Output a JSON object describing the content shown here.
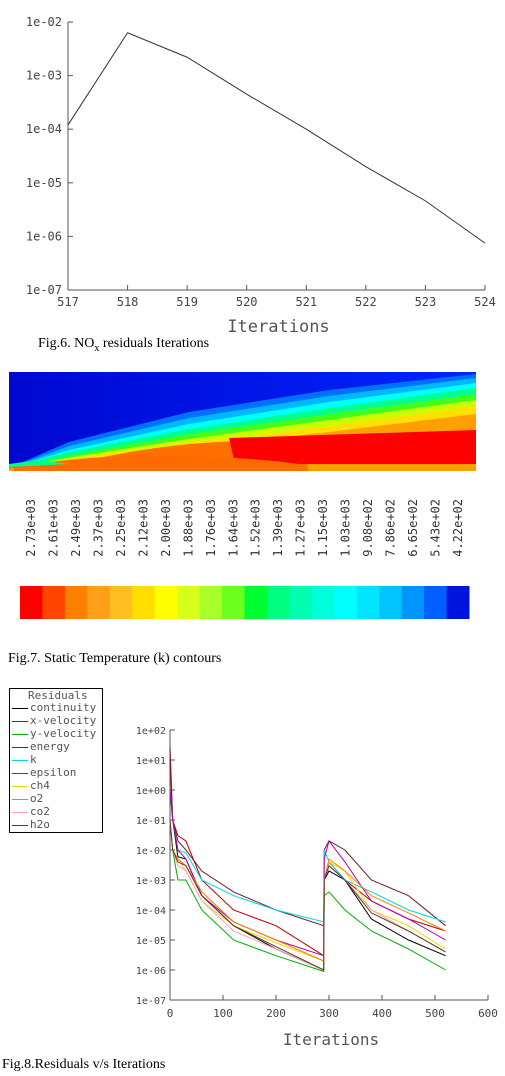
{
  "fig6": {
    "caption_prefix": "Fig.6. NO",
    "caption_sub": "x",
    "caption_suffix": " residuals Iterations",
    "chart_data": {
      "type": "line",
      "xlabel": "Iterations",
      "ylabel": "",
      "xlim": [
        517,
        524
      ],
      "ylim": [
        1e-07,
        0.01
      ],
      "yscale": "log",
      "x_ticks": [
        "517",
        "518",
        "519",
        "520",
        "521",
        "522",
        "523",
        "524"
      ],
      "y_ticks": [
        "1e-02",
        "1e-03",
        "1e-04",
        "1e-05",
        "1e-06",
        "1e-07"
      ],
      "x": [
        517,
        518,
        519,
        520,
        521,
        522,
        523,
        524
      ],
      "values": [
        0.00012,
        0.0063,
        0.0022,
        0.00045,
        0.0001,
        2e-05,
        4.6e-06,
        7.5e-07
      ],
      "grid": false
    }
  },
  "fig7": {
    "caption": "Fig.7. Static Temperature (k) contours",
    "legend_labels": [
      "2.73e+03",
      "2.61e+03",
      "2.49e+03",
      "2.37e+03",
      "2.25e+03",
      "2.12e+03",
      "2.00e+03",
      "1.88e+03",
      "1.76e+03",
      "1.64e+03",
      "1.52e+03",
      "1.39e+03",
      "1.27e+03",
      "1.15e+03",
      "1.03e+03",
      "9.08e+02",
      "7.86e+02",
      "6.65e+02",
      "5.43e+02",
      "4.22e+02"
    ],
    "legend_colors": [
      "#ff0000",
      "#ff4500",
      "#ff7f00",
      "#ff9f1a",
      "#ffbf20",
      "#ffdf00",
      "#ffff00",
      "#d8ff1a",
      "#a8ff2a",
      "#6cff20",
      "#00ff30",
      "#00ff80",
      "#00ffb0",
      "#00ffd8",
      "#00ffff",
      "#00e4ff",
      "#00c4ff",
      "#0094ff",
      "#0060ff",
      "#0014e0"
    ]
  },
  "fig8": {
    "caption": "Fig.8.Residuals v/s Iterations",
    "legend_title": "Residuals",
    "series_names": [
      "continuity",
      "x-velocity",
      "y-velocity",
      "energy",
      "k",
      "epsilon",
      "ch4",
      "o2",
      "co2",
      "h2o"
    ],
    "series_colors": [
      "#000000",
      "#c00000",
      "#00b000",
      "#6b1d2e",
      "#00d8d8",
      "#b000b0",
      "#e0e000",
      "#ff8000",
      "#ff9cc0",
      "#5a3a2a"
    ],
    "chart_data": {
      "type": "line",
      "xlabel": "Iterations",
      "ylabel": "",
      "xlim": [
        0,
        600
      ],
      "ylim": [
        1e-07,
        100.0
      ],
      "yscale": "log",
      "x_ticks": [
        "0",
        "100",
        "200",
        "300",
        "400",
        "500",
        "600"
      ],
      "y_ticks": [
        "1e+02",
        "1e+01",
        "1e+00",
        "1e-01",
        "1e-02",
        "1e-03",
        "1e-04",
        "1e-05",
        "1e-06",
        "1e-07"
      ],
      "x": [
        0,
        5,
        15,
        30,
        60,
        120,
        200,
        290,
        291,
        300,
        330,
        380,
        450,
        520
      ],
      "series": [
        {
          "name": "continuity",
          "values": [
            1.0,
            0.1,
            0.006,
            0.005,
            0.0003,
            3e-05,
            5e-06,
            1e-06,
            0.001,
            0.002,
            0.001,
            5e-05,
            1e-05,
            3e-06
          ]
        },
        {
          "name": "x-velocity",
          "values": [
            10.0,
            0.1,
            0.03,
            0.02,
            0.001,
            0.0001,
            3e-05,
            3e-06,
            0.001,
            0.004,
            0.001,
            0.0002,
            5e-05,
            2e-05
          ]
        },
        {
          "name": "y-velocity",
          "values": [
            0.1,
            0.01,
            0.001,
            0.001,
            0.0001,
            1e-05,
            3e-06,
            9e-07,
            0.0003,
            0.0004,
            0.0001,
            2e-05,
            5e-06,
            1e-06
          ]
        },
        {
          "name": "energy",
          "values": [
            30.0,
            0.1,
            0.02,
            0.01,
            0.002,
            0.0004,
            0.0001,
            3e-05,
            0.01,
            0.02,
            0.01,
            0.001,
            0.0003,
            3e-05
          ]
        },
        {
          "name": "k",
          "values": [
            1.0,
            0.1,
            0.01,
            0.008,
            0.001,
            0.0003,
            0.0001,
            4e-05,
            0.01,
            0.004,
            0.001,
            0.0004,
            0.0001,
            4e-05
          ]
        },
        {
          "name": "epsilon",
          "values": [
            1.0,
            0.1,
            0.01,
            0.005,
            0.0003,
            4e-05,
            1e-05,
            3e-06,
            0.005,
            0.02,
            0.004,
            0.0002,
            5e-05,
            1e-05
          ]
        },
        {
          "name": "ch4",
          "values": [
            0.1,
            0.01,
            0.005,
            0.002,
            0.0002,
            3e-05,
            8e-06,
            2e-06,
            0.001,
            0.004,
            0.002,
            0.0001,
            3e-05,
            5e-06
          ]
        },
        {
          "name": "o2",
          "values": [
            0.1,
            0.01,
            0.005,
            0.003,
            0.0004,
            4e-05,
            1e-05,
            2e-06,
            0.001,
            0.005,
            0.002,
            0.0003,
            8e-05,
            2e-05
          ]
        },
        {
          "name": "co2",
          "values": [
            0.1,
            0.01,
            0.003,
            0.002,
            0.0002,
            2e-05,
            5e-06,
            1e-06,
            0.001,
            0.003,
            0.001,
            0.0001,
            2e-05,
            4e-06
          ]
        },
        {
          "name": "h2o",
          "values": [
            0.1,
            0.01,
            0.004,
            0.003,
            0.0003,
            3e-05,
            6e-06,
            1e-06,
            0.001,
            0.003,
            0.001,
            8e-05,
            2e-05,
            4e-06
          ]
        }
      ],
      "grid": false,
      "legend": "top-left"
    }
  }
}
